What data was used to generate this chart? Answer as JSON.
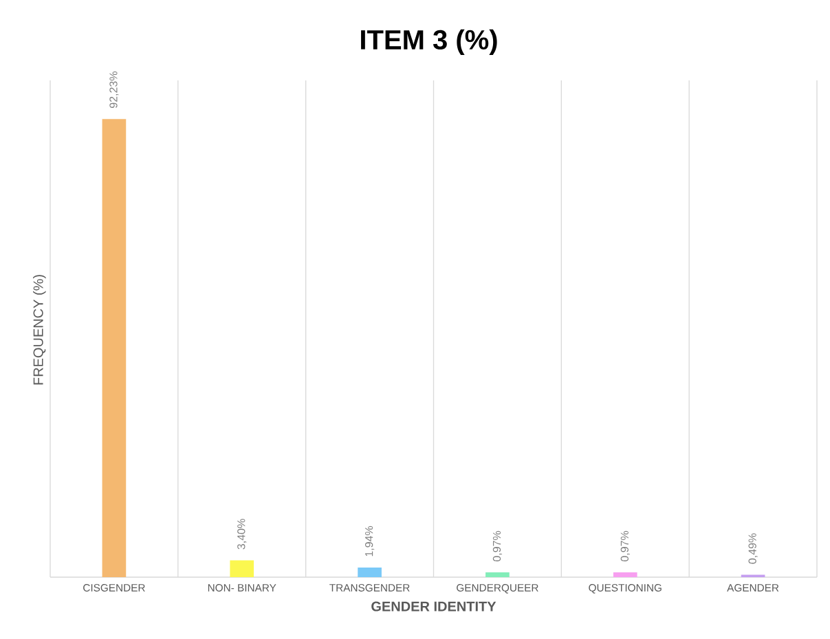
{
  "chart_data": {
    "type": "bar",
    "title": "ITEM 3 (%)",
    "xlabel": "GENDER IDENTITY",
    "ylabel": "FREQUENCY (%)",
    "categories": [
      "CISGENDER",
      "NON- BINARY",
      "TRANSGENDER",
      "GENDERQUEER",
      "QUESTIONING",
      "AGENDER"
    ],
    "values": [
      92.23,
      3.4,
      1.94,
      0.97,
      0.97,
      0.49
    ],
    "value_labels": [
      "92,23%",
      "3,40%",
      "1,94%",
      "0,97%",
      "0,97%",
      "0,49%"
    ],
    "colors": [
      "#f4b870",
      "#fbf750",
      "#7ac9f7",
      "#83edb9",
      "#f79ff0",
      "#c49ef0"
    ],
    "ylim": [
      0,
      100
    ],
    "grid": "x"
  }
}
